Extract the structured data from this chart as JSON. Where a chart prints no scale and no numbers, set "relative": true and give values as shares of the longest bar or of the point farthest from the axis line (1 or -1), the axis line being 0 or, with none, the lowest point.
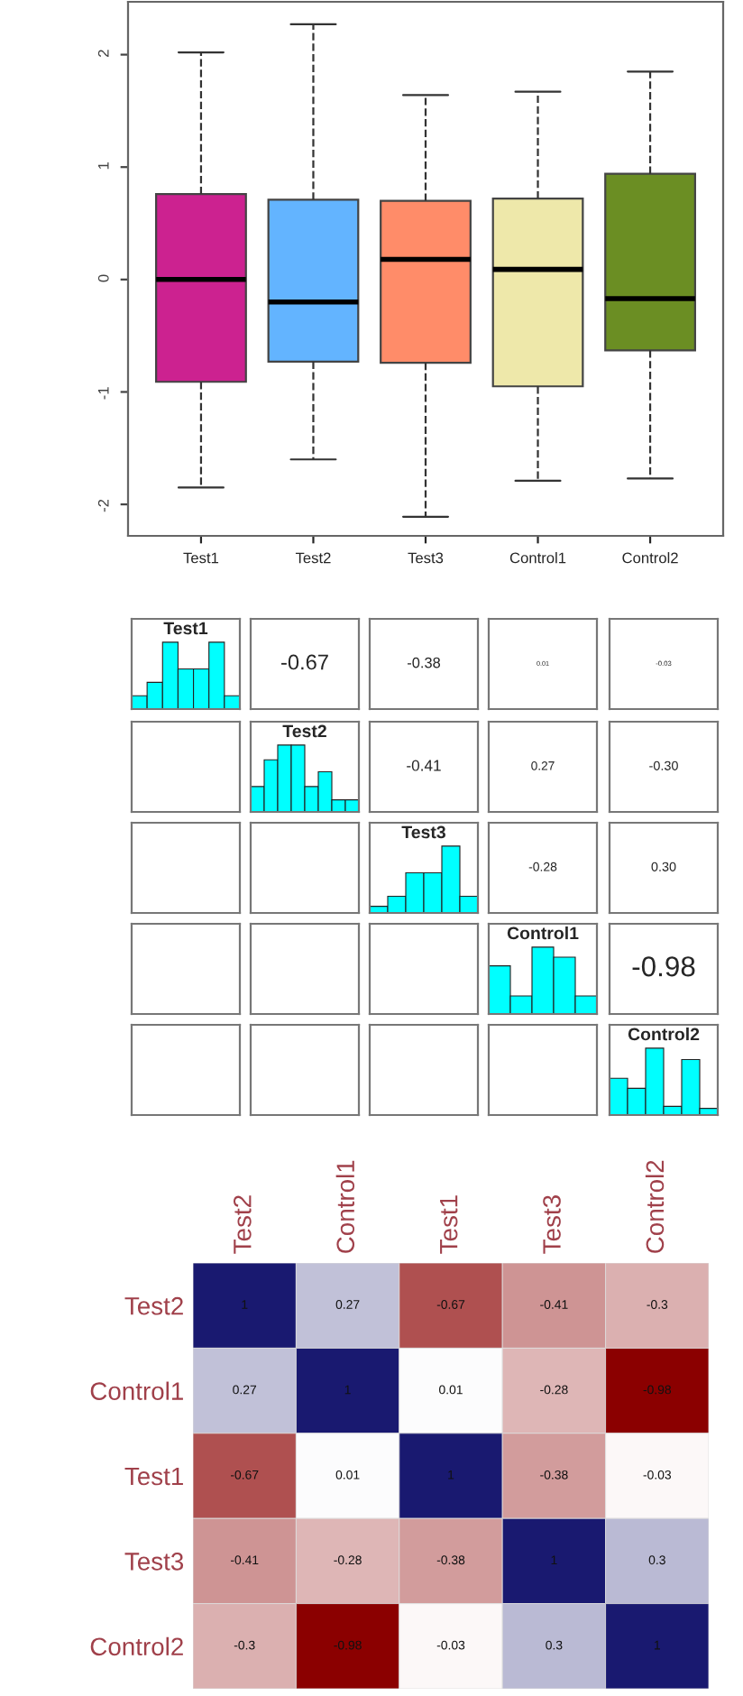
{
  "chart_data": [
    {
      "type": "box",
      "categories": [
        "Test1",
        "Test2",
        "Test3",
        "Control1",
        "Control2"
      ],
      "colors": [
        "#cc2290",
        "#63b4ff",
        "#ff8c69",
        "#eee8aa",
        "#6b8e23"
      ],
      "line_style": "dashed",
      "boxes": [
        {
          "low": -1.85,
          "q1": -0.91,
          "median": 0,
          "q3": 0.76,
          "high": 2.02
        },
        {
          "low": -1.6,
          "q1": -0.73,
          "median": -0.2,
          "q3": 0.71,
          "high": 2.27
        },
        {
          "low": -2.11,
          "q1": -0.74,
          "median": 0.18,
          "q3": 0.7,
          "high": 1.64
        },
        {
          "low": -1.79,
          "q1": -0.95,
          "median": 0.09,
          "q3": 0.72,
          "high": 1.67
        },
        {
          "low": -1.77,
          "q1": -0.63,
          "median": -0.17,
          "q3": 0.94,
          "high": 1.85
        }
      ],
      "ylim": [
        -2.28,
        2.47
      ],
      "yticks": [
        -2,
        -1,
        0,
        1,
        2
      ]
    },
    {
      "type": "other",
      "annotations": [
        "-0.67",
        "-0.38",
        "0.01",
        "-0.03",
        "-0.41",
        "0.27",
        "-0.30",
        "-0.28",
        "0.30",
        "-0.98"
      ]
    },
    {
      "type": "bar",
      "title": "Test1",
      "relative": true,
      "categories": [
        null,
        null,
        null,
        null,
        null,
        null,
        null
      ],
      "values": [
        0.2,
        0.4,
        1,
        0.6,
        0.6,
        1,
        0.2
      ],
      "color": "#00ffff"
    },
    {
      "type": "bar",
      "title": "Test2",
      "relative": true,
      "categories": [
        null,
        null,
        null,
        null,
        null,
        null,
        null,
        null
      ],
      "values": [
        0.38,
        0.78,
        1,
        1,
        0.38,
        0.6,
        0.18,
        0.18
      ],
      "color": "#00ffff"
    },
    {
      "type": "bar",
      "title": "Test3",
      "relative": true,
      "categories": [
        null,
        null,
        null,
        null,
        null,
        null
      ],
      "values": [
        0.1,
        0.25,
        0.6,
        0.6,
        1,
        0.25
      ],
      "color": "#00ffff"
    },
    {
      "type": "bar",
      "title": "Control1",
      "relative": true,
      "categories": [
        null,
        null,
        null,
        null,
        null
      ],
      "values": [
        0.72,
        0.27,
        1,
        0.85,
        0.27
      ],
      "color": "#00ffff"
    },
    {
      "type": "bar",
      "title": "Control2",
      "relative": true,
      "categories": [
        null,
        null,
        null,
        null,
        null,
        null
      ],
      "values": [
        0.55,
        0.4,
        1,
        0.13,
        0.83,
        0.1
      ],
      "color": "#00ffff"
    },
    {
      "type": "heatmap",
      "categories": [
        "Test2",
        "Control1",
        "Test1",
        "Test3",
        "Control2"
      ],
      "y_categories": [
        "Test2",
        "Control1",
        "Test1",
        "Test3",
        "Control2"
      ],
      "cells": [
        [
          1,
          0.27,
          -0.67,
          -0.41,
          -0.3
        ],
        [
          0.27,
          1,
          0.01,
          -0.28,
          -0.98
        ],
        [
          -0.67,
          0.01,
          1,
          -0.38,
          -0.03
        ],
        [
          -0.41,
          -0.28,
          -0.38,
          1,
          0.3
        ],
        [
          -0.3,
          -0.98,
          -0.03,
          0.3,
          1
        ]
      ],
      "data_labels": true
    }
  ]
}
